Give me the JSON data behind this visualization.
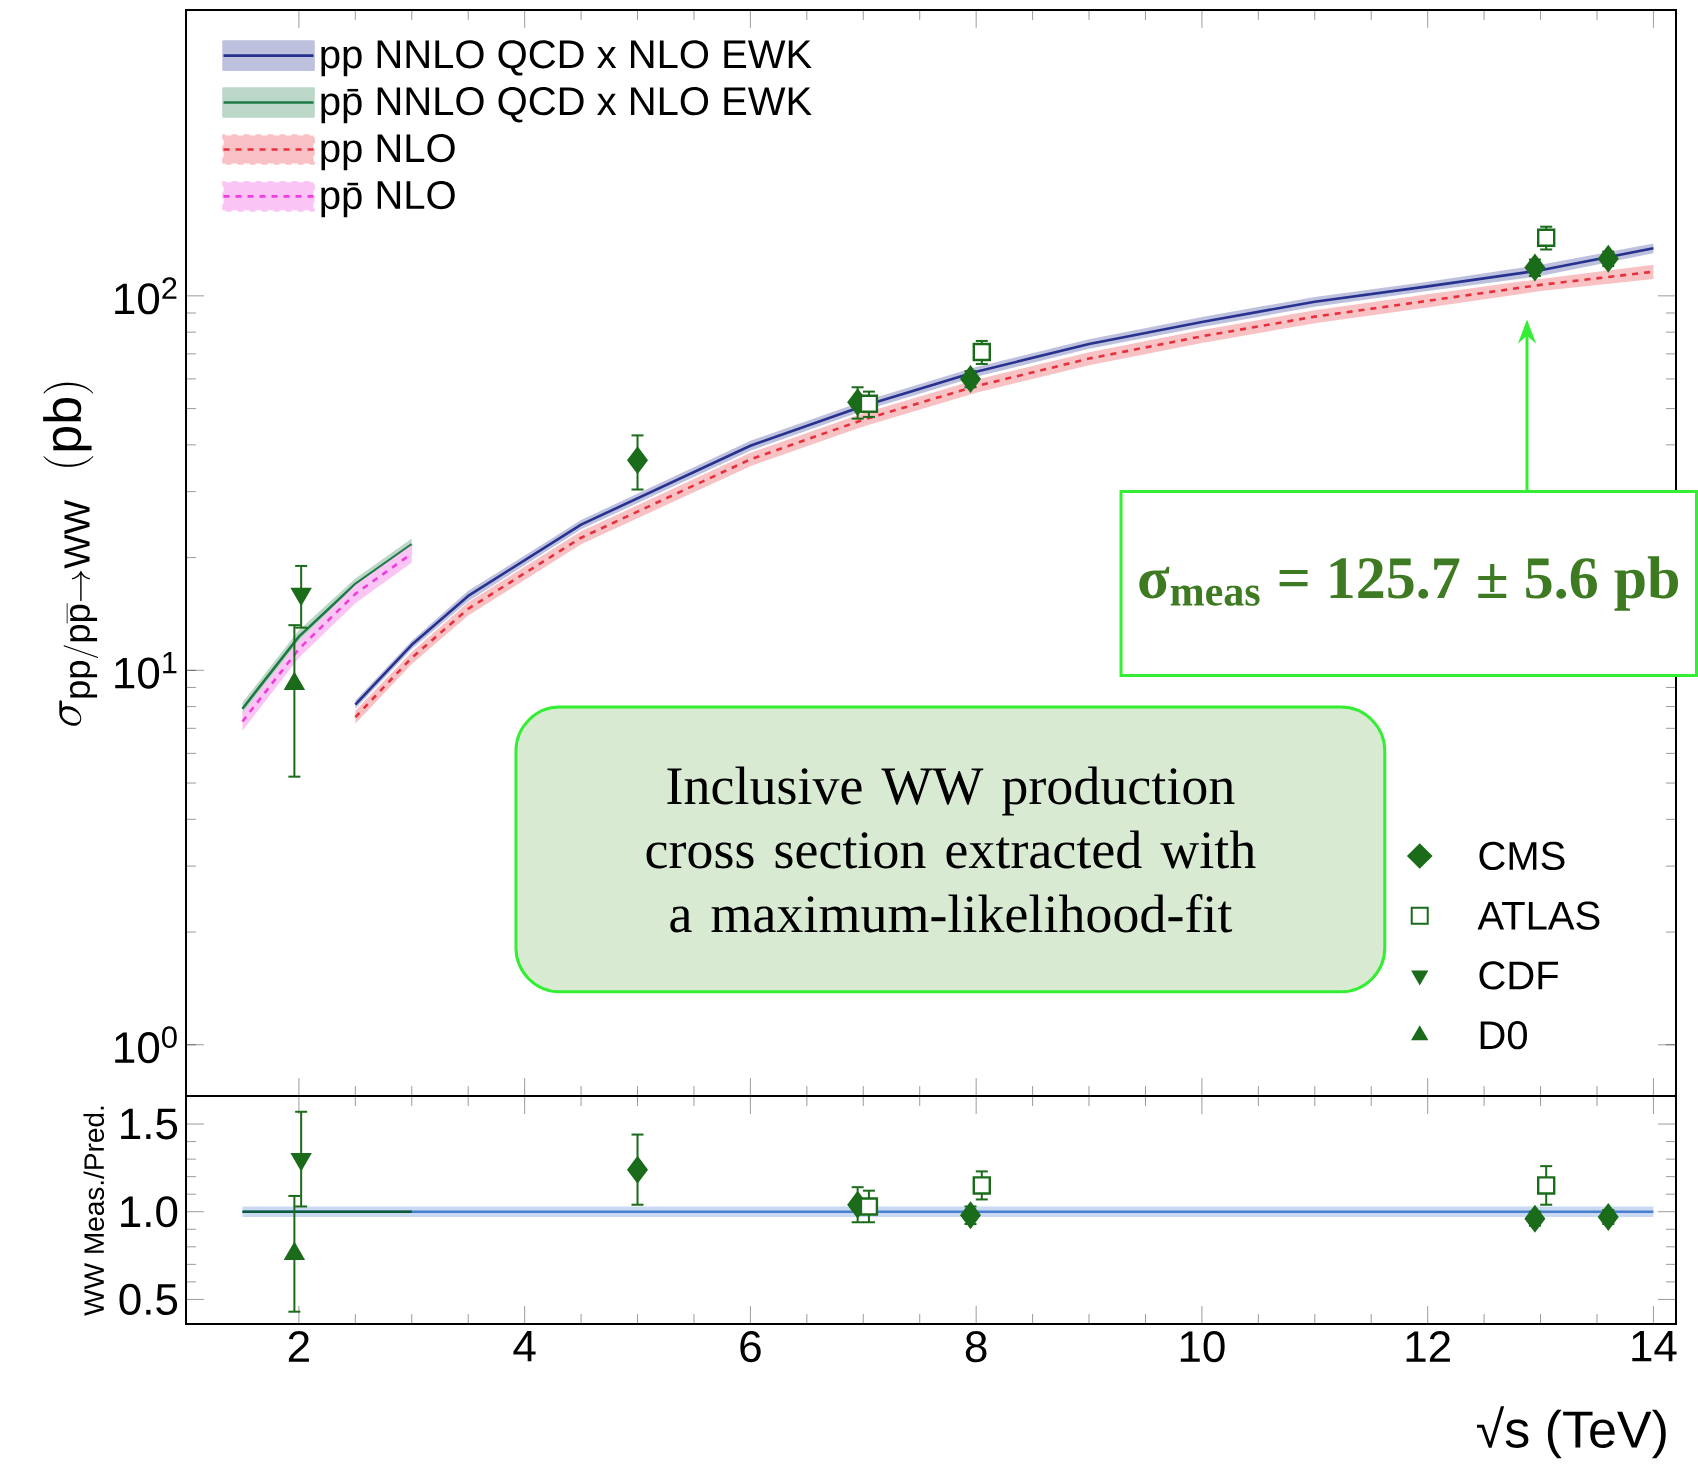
{
  "chart_data": [
    {
      "type": "line",
      "ylabel": "\\sigma_{\\mathrm{pp/p\\overline{p}}\\rightarrow\\mathrm{WW}}\\;\\;(\\mathrm{pb})",
      "log": "y",
      "legend": "top left",
      "tick_labels": "y",
      "xlim": [
        1,
        14.2
      ],
      "ylim": [
        0.73,
        580
      ],
      "xticks": [
        2,
        4,
        6,
        8,
        10,
        12,
        14
      ],
      "yticks": [
        {
          "value": 1,
          "label": "10$^{0}$"
        },
        {
          "value": 10,
          "label": "10$^{1}$"
        },
        {
          "value": 100,
          "label": "10$^{2}$"
        }
      ],
      "annotations": [
        "σ$_{meas}$ = 125.7 ± 5.6 pb",
        "Inclusive WW production cross section extracted with a maximum-likelihood-fit"
      ],
      "series": [
        {
          "name": "pp NNLO QCD x NLO EWK",
          "color": "#27318f",
          "line_style": "solid",
          "x": [
            2.5,
            3,
            3.5,
            4.5,
            6,
            7,
            8,
            9,
            10,
            11,
            12,
            13,
            14
          ],
          "values": [
            8.1,
            11.7,
            15.8,
            24.5,
            39.8,
            50.8,
            62.7,
            74.4,
            85.2,
            96.4,
            106,
            117,
            134
          ],
          "lower": [
            7.9,
            11.4,
            15.3,
            23.8,
            38.6,
            49.3,
            60.8,
            72.2,
            82.6,
            93.5,
            103,
            113,
            130
          ],
          "upper": [
            8.3,
            12.0,
            16.3,
            25.2,
            41.0,
            52.3,
            64.6,
            76.6,
            87.8,
            99.3,
            109,
            121,
            138
          ]
        },
        {
          "name": "pp̄ NNLO QCD x NLO EWK",
          "color": "#1e7a45",
          "line_style": "solid",
          "x": [
            1.5,
            2,
            2.5,
            3
          ],
          "values": [
            7.9,
            12.3,
            17,
            21.7
          ],
          "lower": [
            7.6,
            11.8,
            16.4,
            20.9
          ],
          "upper": [
            8.2,
            12.8,
            17.6,
            22.5
          ]
        },
        {
          "name": "pp NLO",
          "color": "#e8303c",
          "line_style": "dashed",
          "x": [
            2.5,
            3,
            3.5,
            4.5,
            6,
            7,
            8,
            9,
            10,
            11,
            12,
            13,
            14
          ],
          "values": [
            7.5,
            10.8,
            14.6,
            22.6,
            36.6,
            46.7,
            57.4,
            68,
            78,
            88,
            97,
            107,
            116
          ],
          "lower": [
            7.2,
            10.4,
            14.0,
            21.7,
            35.1,
            44.8,
            55.1,
            65.3,
            74.9,
            84.5,
            93.1,
            103,
            111
          ],
          "upper": [
            7.8,
            11.2,
            15.2,
            23.5,
            38.1,
            48.6,
            59.7,
            70.7,
            81.1,
            91.5,
            101,
            111,
            121
          ]
        },
        {
          "name": "pp̄ NLO",
          "color": "#f03cdc",
          "line_style": "dashed",
          "x": [
            1.5,
            2,
            2.5,
            3
          ],
          "values": [
            7.3,
            11.4,
            16,
            20.5
          ],
          "lower": [
            6.9,
            10.8,
            15.1,
            19.4
          ],
          "upper": [
            7.7,
            12.0,
            16.9,
            21.6
          ]
        },
        {
          "name": "CMS",
          "type": "scatter",
          "marker": "diamond",
          "color": "#1a6b1a",
          "x": [
            5,
            6.95,
            7.95,
            12.95,
            13.6
          ],
          "values": [
            36.4,
            52,
            60,
            119,
            125.7
          ],
          "errors": [
            6,
            5,
            3,
            6,
            5.6
          ]
        },
        {
          "name": "ATLAS",
          "type": "scatter",
          "marker": "square",
          "color": "#1a6b1a",
          "x": [
            7.05,
            8.05,
            13.05
          ],
          "values": [
            51.5,
            70.8,
            143
          ],
          "errors": [
            4,
            5,
            10
          ]
        },
        {
          "name": "CDF",
          "type": "scatter",
          "marker": "triangle-down",
          "color": "#1a6b1a",
          "x": [
            2.02
          ],
          "values": [
            16
          ],
          "errors": [
            3
          ]
        },
        {
          "name": "D0",
          "type": "scatter",
          "marker": "triangle",
          "color": "#1a6b1a",
          "x": [
            1.96
          ],
          "values": [
            9.2
          ],
          "errors": [
            4
          ]
        }
      ]
    },
    {
      "type": "line",
      "ylabel": "WW Meas./Pred.",
      "xlabel": "√s  (TeV)",
      "xlim": [
        1,
        14.2
      ],
      "ylim": [
        0.36,
        1.66
      ],
      "xticks": [
        2,
        4,
        6,
        8,
        10,
        12,
        14
      ],
      "yticks": [
        {
          "value": 0.5,
          "label": "0.5"
        },
        {
          "value": 1,
          "label": "1.0"
        },
        {
          "value": 1.5,
          "label": "1.5"
        }
      ],
      "series": [
        {
          "color": "#4a7fd0",
          "line_style": "solid",
          "x": [
            1.5,
            14
          ],
          "values": [
            1,
            1
          ],
          "lower": [
            0.97,
            0.97
          ],
          "upper": [
            1.03,
            1.03
          ]
        },
        {
          "color": "#0d5a3a",
          "line_style": "solid",
          "x": [
            1.5,
            3
          ],
          "values": [
            1,
            1
          ]
        },
        {
          "type": "scatter",
          "marker": "diamond",
          "color": "#1a6b1a",
          "x": [
            5,
            6.95,
            7.95,
            12.95,
            13.6
          ],
          "values": [
            1.24,
            1.04,
            0.98,
            0.96,
            0.97
          ],
          "errors": [
            0.2,
            0.1,
            0.05,
            0.04,
            0.04
          ]
        },
        {
          "type": "scatter",
          "marker": "square",
          "color": "#1a6b1a",
          "x": [
            7.05,
            8.05,
            13.05
          ],
          "values": [
            1.03,
            1.15,
            1.15
          ],
          "errors": [
            0.09,
            0.08,
            0.11
          ]
        },
        {
          "type": "scatter",
          "marker": "triangle-down",
          "color": "#1a6b1a",
          "x": [
            2.02
          ],
          "values": [
            1.3
          ],
          "errors": [
            0.27
          ]
        },
        {
          "type": "scatter",
          "marker": "triangle",
          "color": "#1a6b1a",
          "x": [
            1.96
          ],
          "values": [
            0.76
          ],
          "errors": [
            0.33
          ]
        }
      ]
    }
  ]
}
